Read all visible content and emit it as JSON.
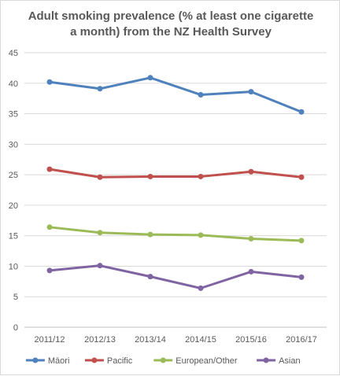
{
  "chart_data": {
    "type": "line",
    "title_line1": "Adult smoking prevalence (% at least one cigarette",
    "title_line2": "a month) from the NZ Health Survey",
    "categories": [
      "2011/12",
      "2012/13",
      "2013/14",
      "2014/15",
      "2015/16",
      "2016/17"
    ],
    "ylim": [
      0,
      45
    ],
    "yticks": [
      0,
      5,
      10,
      15,
      20,
      25,
      30,
      35,
      40,
      45
    ],
    "grid": true,
    "legend_position": "bottom",
    "series": [
      {
        "name": "Māori",
        "color": "#4f81bd",
        "values": [
          40.2,
          39.1,
          40.9,
          38.1,
          38.6,
          35.3
        ]
      },
      {
        "name": "Pacific",
        "color": "#c0504d",
        "values": [
          25.9,
          24.6,
          24.7,
          24.7,
          25.5,
          24.6
        ]
      },
      {
        "name": "European/Other",
        "color": "#9bbb59",
        "values": [
          16.4,
          15.5,
          15.2,
          15.1,
          14.5,
          14.2
        ]
      },
      {
        "name": "Asian",
        "color": "#8064a2",
        "values": [
          9.3,
          10.1,
          8.3,
          6.4,
          9.1,
          8.2
        ]
      }
    ]
  }
}
